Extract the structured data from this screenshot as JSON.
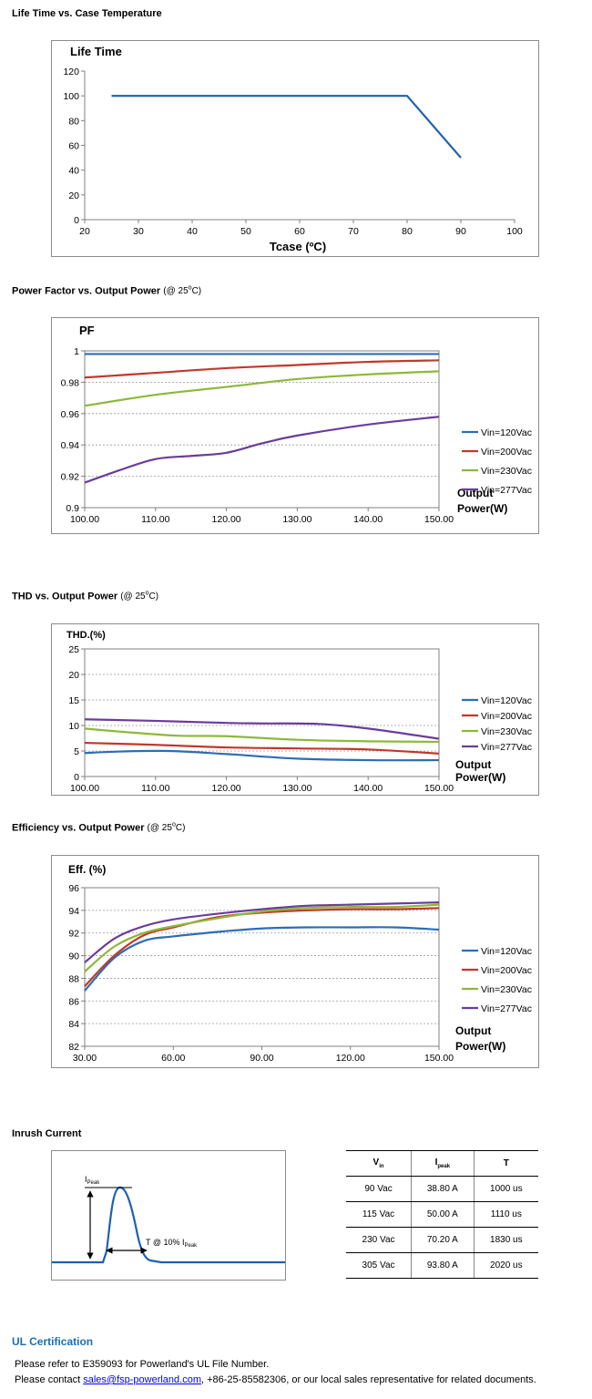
{
  "sections": {
    "life_time_title": "Life Time vs. Case Temperature",
    "pf_title": "Power Factor vs. Output Power",
    "thd_title": "THD vs. Output Power",
    "eff_title": "Efficiency vs. Output Power",
    "temp_note_prefix": "(@ 25",
    "temp_note_sup": "o",
    "temp_note_suffix": "C)",
    "inrush_title": "Inrush Current",
    "ul_title": "UL Certification"
  },
  "chart_data": [
    {
      "id": "life",
      "type": "line",
      "title": "Life Time",
      "xlabel": "Tcase (ºC)",
      "ylabel": "",
      "xlim": [
        20,
        100
      ],
      "ylim": [
        0,
        120
      ],
      "xticks": [
        "20",
        "30",
        "40",
        "50",
        "60",
        "70",
        "80",
        "90",
        "100"
      ],
      "yticks": [
        "0",
        "20",
        "40",
        "60",
        "80",
        "100",
        "120"
      ],
      "grid": false,
      "series": [
        {
          "color": "#2060b0",
          "points": [
            [
              25,
              100
            ],
            [
              80,
              100
            ],
            [
              90,
              50
            ]
          ]
        }
      ]
    },
    {
      "id": "pf",
      "type": "line",
      "title": "PF",
      "xlabel": "Output Power(W)",
      "xlabel_lines": [
        "Output",
        "Power(W)"
      ],
      "xlim": [
        100,
        150
      ],
      "ylim": [
        0.9,
        1.0
      ],
      "xticks": [
        "100.00",
        "110.00",
        "120.00",
        "130.00",
        "140.00",
        "150.00"
      ],
      "yticks": [
        "0.9",
        "0.92",
        "0.94",
        "0.96",
        "0.98",
        "1"
      ],
      "grid": true,
      "legend": "right",
      "series": [
        {
          "name": "Vin=120Vac",
          "color": "#2d6db5",
          "points": [
            [
              100,
              0.998
            ],
            [
              150,
              0.998
            ]
          ]
        },
        {
          "name": "Vin=200Vac",
          "color": "#c0392b",
          "points": [
            [
              100,
              0.983
            ],
            [
              110,
              0.986
            ],
            [
              120,
              0.989
            ],
            [
              130,
              0.991
            ],
            [
              140,
              0.993
            ],
            [
              150,
              0.994
            ]
          ]
        },
        {
          "name": "Vin=230Vac",
          "color": "#8db83a",
          "points": [
            [
              100,
              0.965
            ],
            [
              110,
              0.972
            ],
            [
              120,
              0.977
            ],
            [
              130,
              0.982
            ],
            [
              140,
              0.985
            ],
            [
              150,
              0.987
            ]
          ]
        },
        {
          "name": "Vin=277Vac",
          "color": "#6a3d9a",
          "points": [
            [
              100,
              0.916
            ],
            [
              105,
              0.924
            ],
            [
              110,
              0.931
            ],
            [
              115,
              0.933
            ],
            [
              120,
              0.935
            ],
            [
              125,
              0.941
            ],
            [
              130,
              0.946
            ],
            [
              140,
              0.953
            ],
            [
              150,
              0.958
            ]
          ]
        }
      ]
    },
    {
      "id": "thd",
      "type": "line",
      "title": "THD.(%)",
      "xlabel": "Output Power(W)",
      "xlabel_lines": [
        "Output",
        "Power(W)"
      ],
      "xlim": [
        100,
        150
      ],
      "ylim": [
        0,
        25
      ],
      "xticks": [
        "100.00",
        "110.00",
        "120.00",
        "130.00",
        "140.00",
        "150.00"
      ],
      "yticks": [
        "0",
        "5",
        "10",
        "15",
        "20",
        "25"
      ],
      "grid": true,
      "legend": "right",
      "series": [
        {
          "name": "Vin=120Vac",
          "color": "#2d6db5",
          "points": [
            [
              100,
              4.6
            ],
            [
              105,
              4.9
            ],
            [
              112,
              5.0
            ],
            [
              120,
              4.4
            ],
            [
              130,
              3.5
            ],
            [
              140,
              3.2
            ],
            [
              150,
              3.2
            ]
          ]
        },
        {
          "name": "Vin=200Vac",
          "color": "#c0392b",
          "points": [
            [
              100,
              6.6
            ],
            [
              110,
              6.2
            ],
            [
              120,
              5.7
            ],
            [
              130,
              5.5
            ],
            [
              140,
              5.3
            ],
            [
              150,
              4.5
            ]
          ]
        },
        {
          "name": "Vin=230Vac",
          "color": "#8db83a",
          "points": [
            [
              100,
              9.4
            ],
            [
              105,
              8.8
            ],
            [
              113,
              8.0
            ],
            [
              120,
              7.9
            ],
            [
              130,
              7.2
            ],
            [
              140,
              6.9
            ],
            [
              150,
              6.8
            ]
          ]
        },
        {
          "name": "Vin=277Vac",
          "color": "#6a3d9a",
          "points": [
            [
              100,
              11.2
            ],
            [
              110,
              10.9
            ],
            [
              120,
              10.5
            ],
            [
              125,
              10.4
            ],
            [
              133,
              10.3
            ],
            [
              140,
              9.4
            ],
            [
              150,
              7.4
            ]
          ]
        }
      ]
    },
    {
      "id": "eff",
      "type": "line",
      "title": "Eff. (%)",
      "xlabel": "Output Power(W)",
      "xlabel_lines": [
        "Output",
        "Power(W)"
      ],
      "xlim": [
        30,
        150
      ],
      "ylim": [
        82,
        96
      ],
      "xticks": [
        "30.00",
        "60.00",
        "90.00",
        "120.00",
        "150.00"
      ],
      "yticks": [
        "82",
        "84",
        "86",
        "88",
        "90",
        "92",
        "94",
        "96"
      ],
      "grid": true,
      "legend": "right",
      "series": [
        {
          "name": "Vin=120Vac",
          "color": "#2d6db5",
          "points": [
            [
              30,
              86.9
            ],
            [
              40,
              89.8
            ],
            [
              50,
              91.3
            ],
            [
              60,
              91.7
            ],
            [
              75,
              92.1
            ],
            [
              90,
              92.4
            ],
            [
              105,
              92.5
            ],
            [
              120,
              92.5
            ],
            [
              135,
              92.5
            ],
            [
              150,
              92.3
            ]
          ]
        },
        {
          "name": "Vin=200Vac",
          "color": "#c0392b",
          "points": [
            [
              30,
              87.3
            ],
            [
              40,
              90.0
            ],
            [
              50,
              91.8
            ],
            [
              60,
              92.5
            ],
            [
              75,
              93.4
            ],
            [
              90,
              93.8
            ],
            [
              105,
              94.0
            ],
            [
              120,
              94.1
            ],
            [
              135,
              94.1
            ],
            [
              150,
              94.2
            ]
          ]
        },
        {
          "name": "Vin=230Vac",
          "color": "#8db83a",
          "points": [
            [
              30,
              88.6
            ],
            [
              40,
              90.8
            ],
            [
              50,
              92.0
            ],
            [
              60,
              92.6
            ],
            [
              75,
              93.3
            ],
            [
              90,
              93.9
            ],
            [
              105,
              94.2
            ],
            [
              120,
              94.3
            ],
            [
              135,
              94.3
            ],
            [
              150,
              94.5
            ]
          ]
        },
        {
          "name": "Vin=277Vac",
          "color": "#6a3d9a",
          "points": [
            [
              30,
              89.4
            ],
            [
              40,
              91.5
            ],
            [
              50,
              92.6
            ],
            [
              60,
              93.2
            ],
            [
              75,
              93.7
            ],
            [
              90,
              94.1
            ],
            [
              105,
              94.4
            ],
            [
              120,
              94.5
            ],
            [
              135,
              94.6
            ],
            [
              150,
              94.7
            ]
          ]
        }
      ]
    }
  ],
  "inrush": {
    "diagram": {
      "ipeak_label": "I",
      "ipeak_sub": "Peak",
      "t_label": "T @ 10% I",
      "t_sub": "Peak"
    },
    "table": {
      "headers": [
        {
          "main": "V",
          "sub": "in"
        },
        {
          "main": "I",
          "sub": "peak"
        },
        {
          "main": "T",
          "sub": ""
        }
      ],
      "rows": [
        [
          "90 Vac",
          "38.80 A",
          "1000 us"
        ],
        [
          "115 Vac",
          "50.00 A",
          "1110 us"
        ],
        [
          "230 Vac",
          "70.20 A",
          "1830 us"
        ],
        [
          "305 Vac",
          "93.80 A",
          "2020 us"
        ]
      ]
    }
  },
  "ul": {
    "line1": "Please refer to E359093 for Powerland's UL File Number.",
    "line2_prefix": "Please contact ",
    "email": "sales@fsp-powerland.com",
    "line2_suffix": ", +86-25-85582306, or our local sales representative for related documents."
  }
}
